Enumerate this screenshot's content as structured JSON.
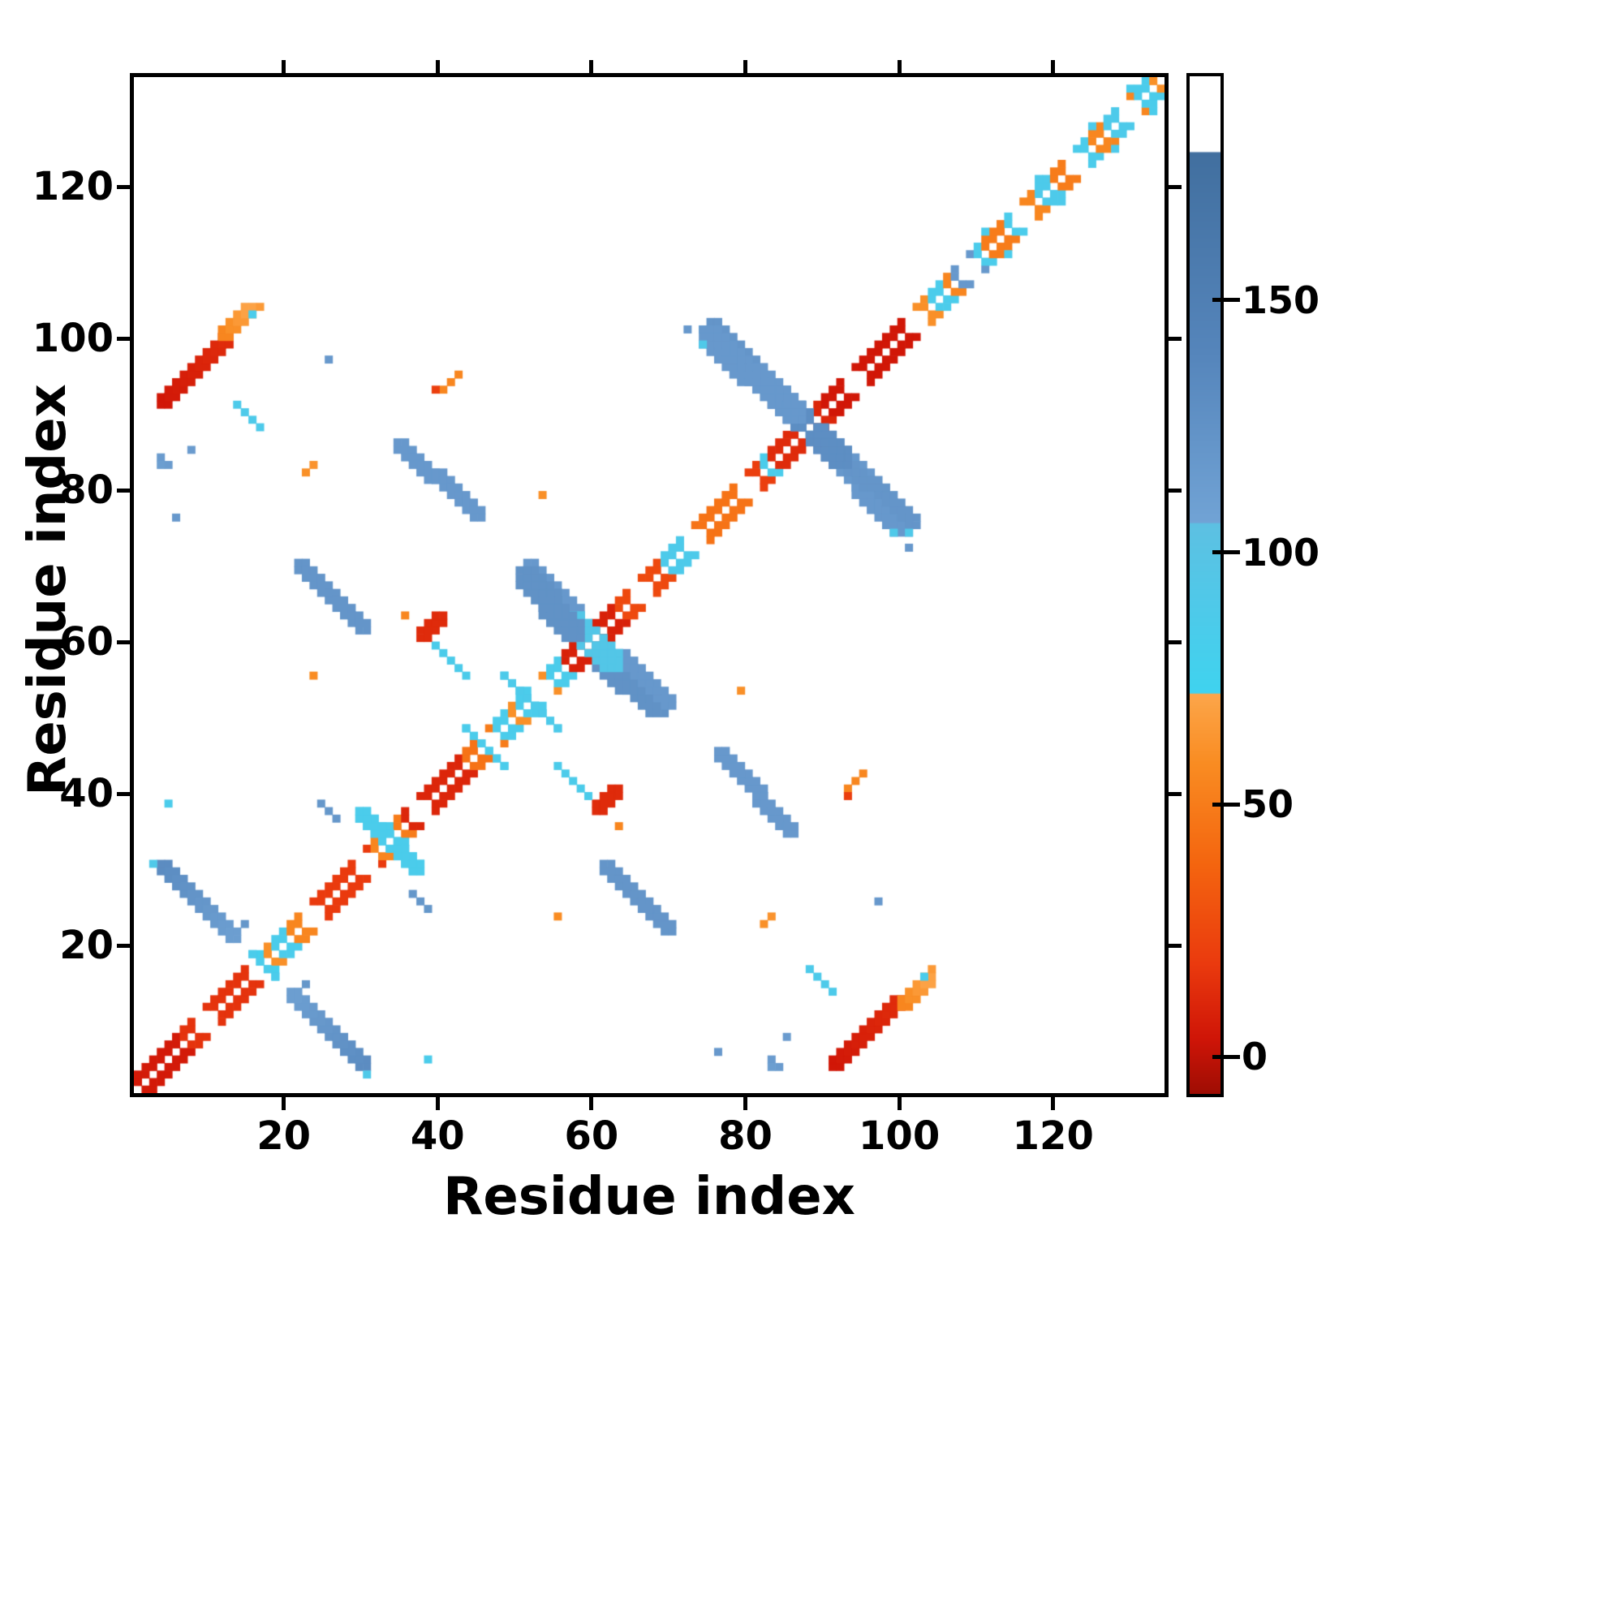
{
  "figure": {
    "background": "#ffffff",
    "axis_color": "#000000"
  },
  "chart_data": {
    "type": "heatmap",
    "title": "",
    "xlabel": "Residue index",
    "ylabel": "Residue index",
    "x_range": [
      1,
      135
    ],
    "y_range": [
      1,
      135
    ],
    "x_ticks": [
      20,
      40,
      60,
      80,
      100,
      120
    ],
    "y_ticks": [
      20,
      40,
      60,
      80,
      100,
      120
    ],
    "grid": false,
    "legend": "none",
    "symmetric": true,
    "background_value_color": "#ffffff",
    "colorbar": {
      "position": "right",
      "range": [
        -8,
        195
      ],
      "ticks": [
        0,
        50,
        100,
        150
      ],
      "stops": [
        [
          -8,
          "#9e0d04"
        ],
        [
          3,
          "#cf1507"
        ],
        [
          18,
          "#ea3a0e"
        ],
        [
          38,
          "#f4650f"
        ],
        [
          58,
          "#f98c22"
        ],
        [
          71.9,
          "#fca64a"
        ],
        [
          72,
          "#3fd3ef"
        ],
        [
          90,
          "#4fc9e9"
        ],
        [
          105.9,
          "#5dc0e2"
        ],
        [
          106,
          "#71a3d5"
        ],
        [
          140,
          "#5585bb"
        ],
        [
          179.9,
          "#416f9f"
        ],
        [
          180,
          "#ffffff"
        ],
        [
          195,
          "#ffffff"
        ]
      ]
    },
    "diag_band": {
      "offsets": [
        1,
        2
      ],
      "breaks": [
        10,
        17,
        24,
        31,
        38,
        47,
        54,
        67,
        74,
        81,
        95,
        103,
        110,
        117,
        124,
        131
      ],
      "segments": [
        [
          1,
          6,
          5
        ],
        [
          7,
          15,
          15
        ],
        [
          16,
          17,
          80
        ],
        [
          18,
          18,
          60
        ],
        [
          19,
          20,
          85
        ],
        [
          21,
          23,
          55
        ],
        [
          24,
          31,
          18
        ],
        [
          32,
          32,
          55
        ],
        [
          33,
          34,
          85
        ],
        [
          35,
          35,
          50
        ],
        [
          36,
          43,
          10
        ],
        [
          44,
          45,
          45
        ],
        [
          46,
          46,
          85
        ],
        [
          47,
          47,
          50
        ],
        [
          48,
          49,
          85
        ],
        [
          50,
          50,
          60
        ],
        [
          51,
          52,
          85
        ],
        [
          53,
          54,
          60
        ],
        [
          55,
          56,
          85
        ],
        [
          57,
          63,
          8
        ],
        [
          64,
          69,
          25
        ],
        [
          70,
          73,
          88
        ],
        [
          74,
          79,
          45
        ],
        [
          80,
          82,
          20
        ],
        [
          83,
          83,
          85
        ],
        [
          84,
          87,
          12
        ],
        [
          88,
          88,
          85
        ],
        [
          89,
          90,
          10
        ],
        [
          91,
          102,
          4
        ],
        [
          103,
          104,
          60
        ],
        [
          105,
          106,
          85
        ],
        [
          107,
          107,
          55
        ],
        [
          108,
          110,
          118
        ],
        [
          111,
          111,
          85
        ],
        [
          112,
          114,
          50
        ],
        [
          115,
          116,
          85
        ],
        [
          117,
          118,
          55
        ],
        [
          119,
          120,
          88
        ],
        [
          121,
          123,
          50
        ],
        [
          124,
          125,
          85
        ],
        [
          126,
          127,
          55
        ],
        [
          128,
          129,
          88
        ],
        [
          130,
          131,
          55
        ],
        [
          132,
          133,
          85
        ],
        [
          134,
          134,
          60
        ]
      ]
    },
    "features": {
      "streaks": [
        [
          4,
          92,
          12,
          100,
          2,
          4,
          12
        ],
        [
          12,
          101,
          15,
          104,
          2,
          55,
          70
        ],
        [
          4,
          30,
          13,
          21,
          2,
          132,
          112
        ],
        [
          16,
          19,
          19,
          16,
          1,
          85,
          85
        ],
        [
          25,
          39,
          27,
          37,
          1,
          120,
          120
        ],
        [
          30,
          37,
          37,
          30,
          2,
          85,
          85
        ],
        [
          44,
          49,
          49,
          44,
          1,
          85,
          85
        ],
        [
          49,
          56,
          56,
          49,
          1,
          88,
          88
        ],
        [
          52,
          70,
          58,
          64,
          2,
          118,
          118
        ],
        [
          58,
          63,
          63,
          58,
          3,
          95,
          95
        ],
        [
          62,
          58,
          69,
          52,
          3,
          125,
          125
        ],
        [
          22,
          70,
          30,
          62,
          2,
          122,
          122
        ],
        [
          40,
          60,
          44,
          56,
          1,
          86,
          86
        ],
        [
          35,
          86,
          45,
          77,
          2,
          118,
          118
        ],
        [
          76,
          102,
          86,
          91,
          2,
          122,
          122
        ],
        [
          85,
          93,
          93,
          85,
          3,
          130,
          130
        ],
        [
          91,
          87,
          101,
          76,
          3,
          118,
          118
        ],
        [
          61,
          38,
          63,
          40,
          2,
          12,
          12
        ],
        [
          41,
          94,
          43,
          96,
          1,
          55,
          55
        ],
        [
          89,
          17,
          92,
          14,
          1,
          88,
          88
        ]
      ],
      "dots": [
        [
          3,
          31,
          90
        ],
        [
          15,
          23,
          120
        ],
        [
          39,
          5,
          85
        ],
        [
          26,
          98,
          118
        ],
        [
          6,
          77,
          118
        ],
        [
          4,
          85,
          115
        ],
        [
          5,
          84,
          115
        ],
        [
          4,
          84,
          112
        ],
        [
          23,
          83,
          60
        ],
        [
          24,
          84,
          62
        ],
        [
          24,
          56,
          58
        ],
        [
          36,
          64,
          55
        ],
        [
          80,
          54,
          60
        ],
        [
          40,
          94,
          20
        ],
        [
          16,
          104,
          85
        ],
        [
          17,
          105,
          65
        ],
        [
          75,
          102,
          90
        ],
        [
          102,
          73,
          118
        ],
        [
          100,
          75,
          90
        ],
        [
          86,
          8,
          115
        ],
        [
          112,
          115,
          85
        ],
        [
          119,
          122,
          88
        ],
        [
          126,
          129,
          88
        ],
        [
          131,
          134,
          85
        ]
      ]
    }
  }
}
